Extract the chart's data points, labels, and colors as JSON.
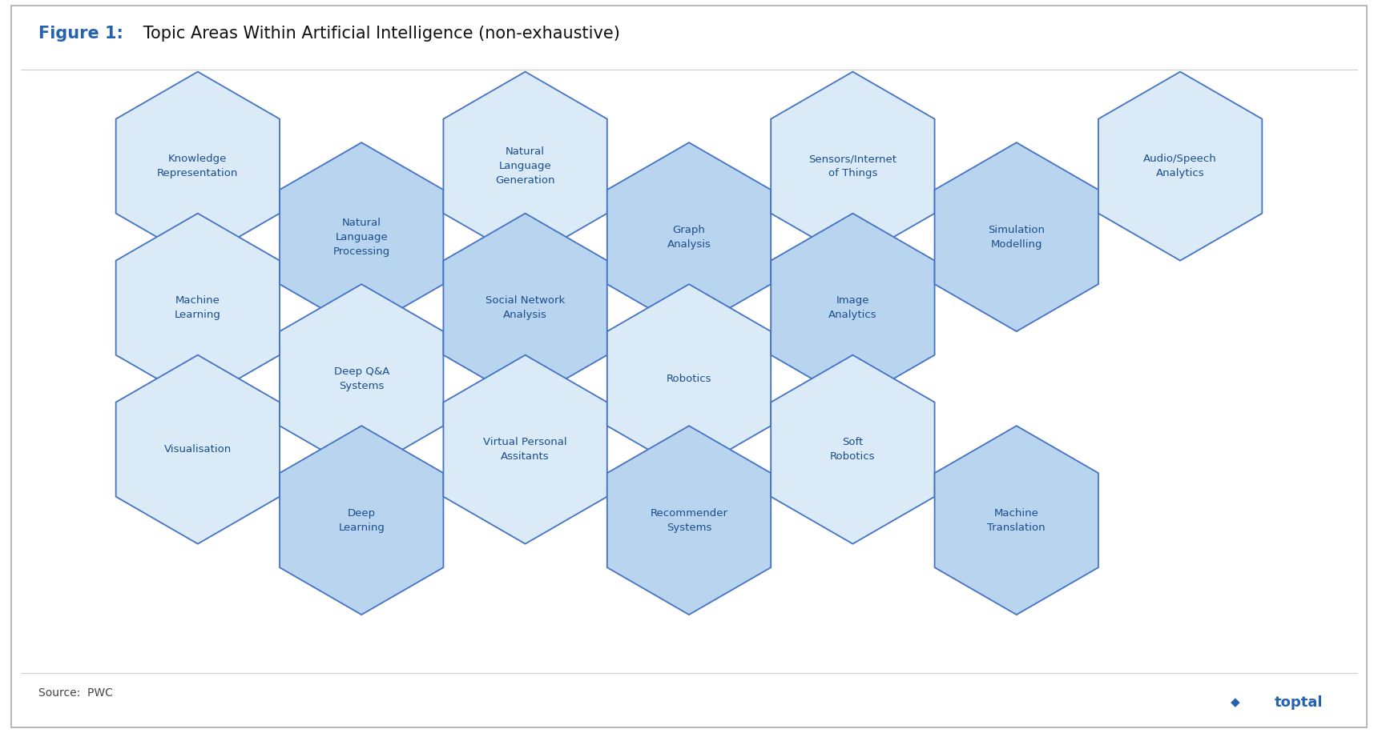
{
  "title_bold": "Figure 1:",
  "title_regular": " Topic Areas Within Artificial Intelligence (non-exhaustive)",
  "source_label": "Source:  PWC",
  "bg_color": "#ffffff",
  "title_bold_color": "#2563ae",
  "title_regular_color": "#111111",
  "text_color": "#1a4e8c",
  "edge_color": "#4472C4",
  "toptal_color": "#2563ae",
  "light_fill": "#daeaf7",
  "medium_fill": "#b8d4ee",
  "hex_data": [
    [
      0,
      0,
      "Knowledge\nRepresentation",
      "light"
    ],
    [
      0,
      1,
      "Machine\nLearning",
      "light"
    ],
    [
      0,
      2,
      "Visualisation",
      "light"
    ],
    [
      1,
      0,
      "Natural\nLanguage\nProcessing",
      "medium"
    ],
    [
      1,
      1,
      "Deep Q&A\nSystems",
      "light"
    ],
    [
      1,
      2,
      "Deep\nLearning",
      "medium"
    ],
    [
      2,
      0,
      "Natural\nLanguage\nGeneration",
      "light"
    ],
    [
      2,
      1,
      "Social Network\nAnalysis",
      "medium"
    ],
    [
      2,
      2,
      "Virtual Personal\nAssitants",
      "light"
    ],
    [
      3,
      0,
      "Graph\nAnalysis",
      "medium"
    ],
    [
      3,
      1,
      "Robotics",
      "light"
    ],
    [
      3,
      2,
      "Recommender\nSystems",
      "medium"
    ],
    [
      4,
      0,
      "Sensors/Internet\nof Things",
      "light"
    ],
    [
      4,
      1,
      "Image\nAnalytics",
      "medium"
    ],
    [
      4,
      2,
      "Soft\nRobotics",
      "light"
    ],
    [
      5,
      0,
      "Simulation\nModelling",
      "medium"
    ],
    [
      5,
      2,
      "Machine\nTranslation",
      "medium"
    ],
    [
      6,
      0,
      "Audio/Speech\nAnalytics",
      "light"
    ]
  ]
}
